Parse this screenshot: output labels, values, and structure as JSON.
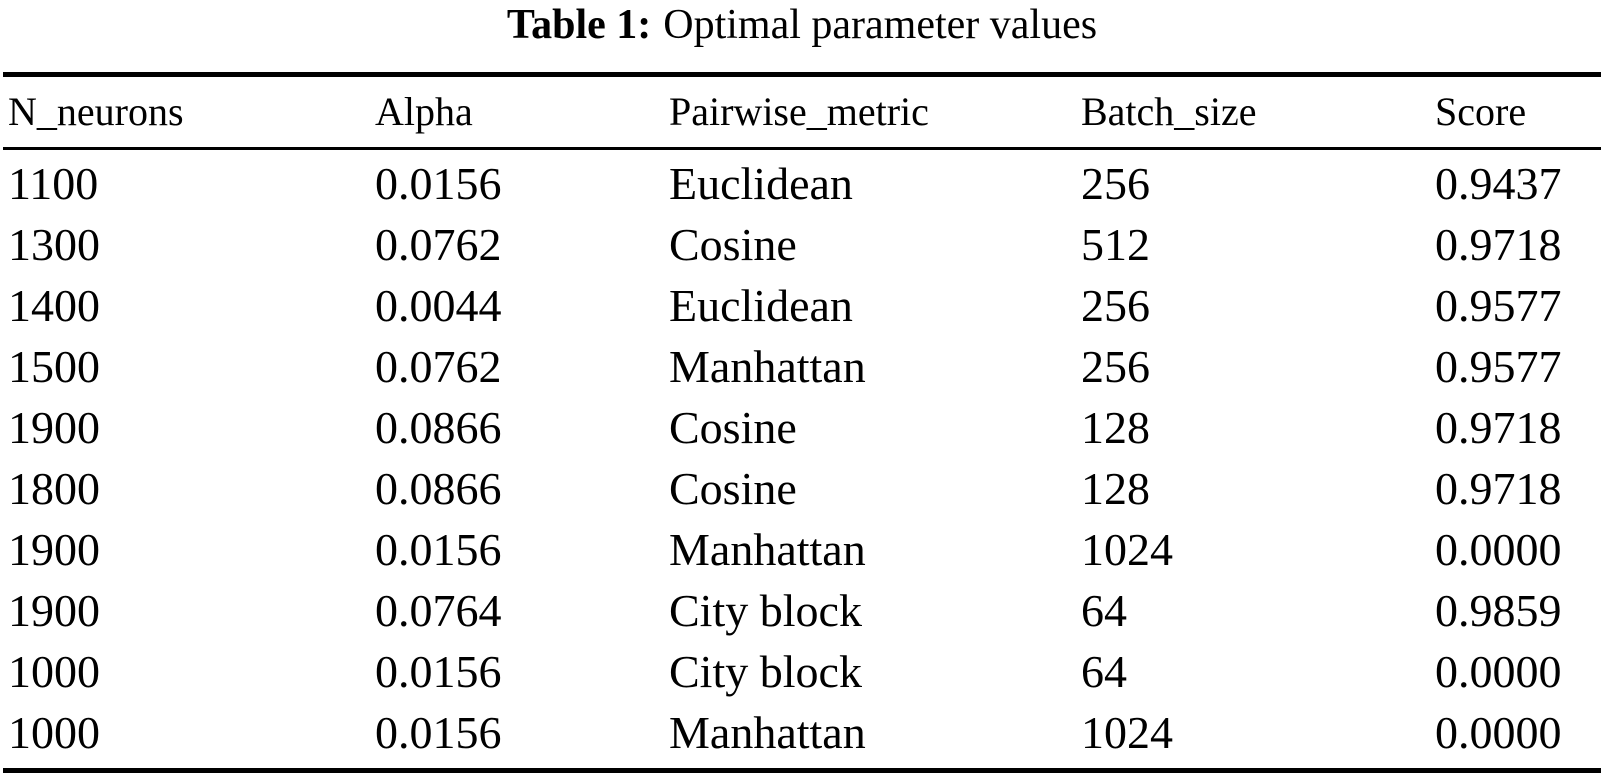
{
  "caption": {
    "label": "Table 1:",
    "text": "Optimal parameter values"
  },
  "table": {
    "columns": [
      "N_neurons",
      "Alpha",
      "Pairwise_metric",
      "Batch_size",
      "Score"
    ],
    "rows": [
      [
        "1100",
        "0.0156",
        "Euclidean",
        "256",
        "0.9437"
      ],
      [
        "1300",
        "0.0762",
        "Cosine",
        "512",
        "0.9718"
      ],
      [
        "1400",
        "0.0044",
        "Euclidean",
        "256",
        "0.9577"
      ],
      [
        "1500",
        "0.0762",
        "Manhattan",
        "256",
        "0.9577"
      ],
      [
        "1900",
        "0.0866",
        "Cosine",
        "128",
        "0.9718"
      ],
      [
        "1800",
        "0.0866",
        "Cosine",
        "128",
        "0.9718"
      ],
      [
        "1900",
        "0.0156",
        "Manhattan",
        "1024",
        "0.0000"
      ],
      [
        "1900",
        "0.0764",
        "City block",
        "64",
        "0.9859"
      ],
      [
        "1000",
        "0.0156",
        "City block",
        "64",
        "0.0000"
      ],
      [
        "1000",
        "0.0156",
        "Manhattan",
        "1024",
        "0.0000"
      ]
    ]
  },
  "colors": {
    "text": "#000000",
    "background": "#ffffff",
    "rule": "#000000"
  }
}
